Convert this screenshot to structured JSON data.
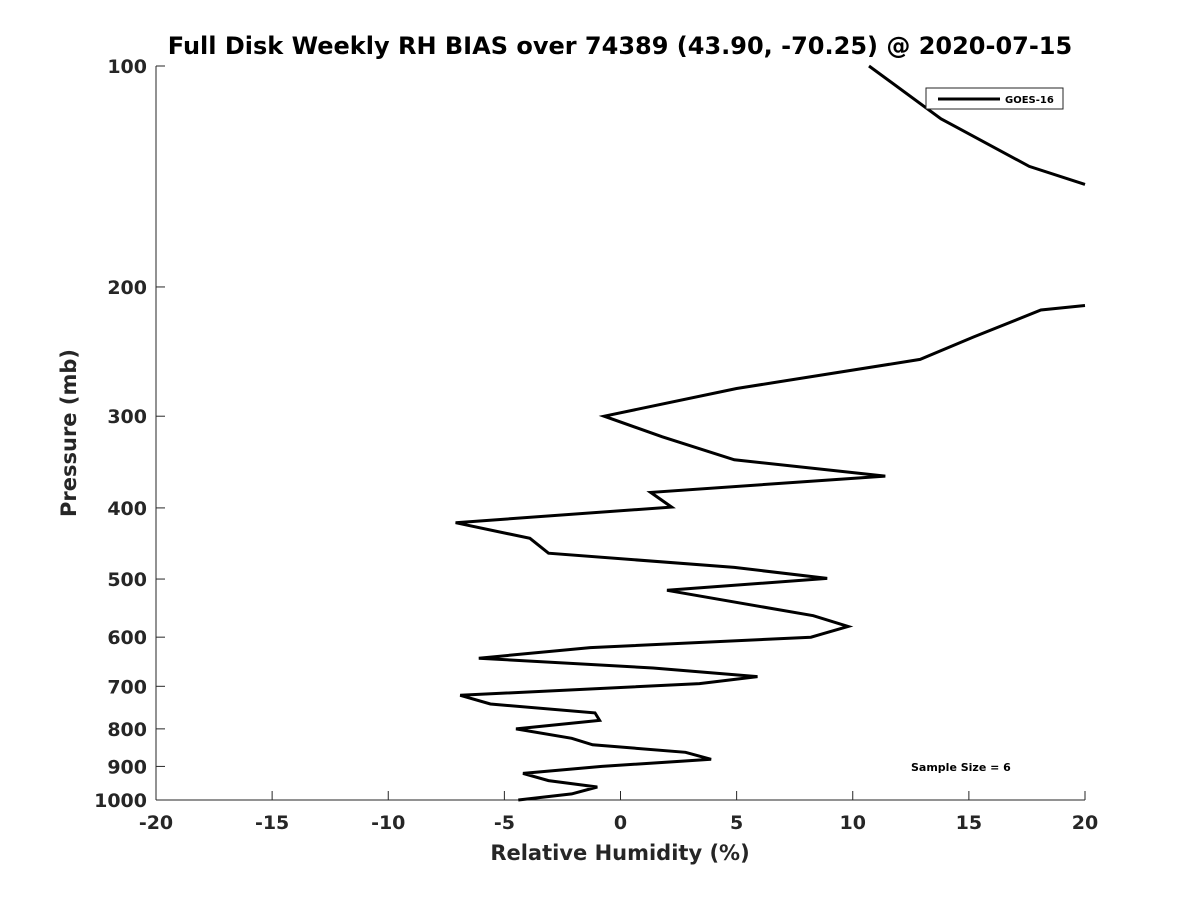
{
  "chart_data": {
    "type": "line",
    "title": "Full Disk Weekly RH BIAS over 74389 (43.90, -70.25) @ 2020-07-15",
    "xlabel": "Relative Humidity (%)",
    "ylabel": "Pressure (mb)",
    "xlim": [
      -20,
      20
    ],
    "ylim": [
      100,
      1000
    ],
    "y_scale": "log",
    "y_reversed": true,
    "x_ticks": [
      -20,
      -15,
      -10,
      -5,
      0,
      5,
      10,
      15,
      20
    ],
    "x_tick_labels": [
      "-20",
      "-15",
      "-10",
      "-5",
      "0",
      "5",
      "10",
      "15",
      "20"
    ],
    "y_ticks": [
      100,
      200,
      300,
      400,
      500,
      600,
      700,
      800,
      900,
      1000
    ],
    "y_tick_labels": [
      "100",
      "200",
      "300",
      "400",
      "500",
      "600",
      "700",
      "800",
      "900",
      "1000"
    ],
    "grid": false,
    "legend_position": "top-right",
    "annotation": "Sample Size = 6",
    "series": [
      {
        "name": "GOES-16",
        "color": "#000000",
        "segments": [
          [
            {
              "x": 10.7,
              "y": 100
            },
            {
              "x": 13.8,
              "y": 118
            },
            {
              "x": 17.6,
              "y": 137
            },
            {
              "x": 20.0,
              "y": 145
            }
          ],
          [
            {
              "x": 20.0,
              "y": 212
            },
            {
              "x": 18.1,
              "y": 215
            },
            {
              "x": 15.2,
              "y": 234
            },
            {
              "x": 12.9,
              "y": 251
            },
            {
              "x": 5.0,
              "y": 275
            },
            {
              "x": -0.7,
              "y": 300
            },
            {
              "x": 1.8,
              "y": 320
            },
            {
              "x": 4.9,
              "y": 344
            },
            {
              "x": 11.4,
              "y": 362
            },
            {
              "x": 1.3,
              "y": 381
            },
            {
              "x": 2.2,
              "y": 399
            },
            {
              "x": -7.1,
              "y": 419
            },
            {
              "x": -3.9,
              "y": 440
            },
            {
              "x": -3.1,
              "y": 461
            },
            {
              "x": 4.9,
              "y": 482
            },
            {
              "x": 8.9,
              "y": 499
            },
            {
              "x": 2.0,
              "y": 518
            },
            {
              "x": 8.3,
              "y": 561
            },
            {
              "x": 9.8,
              "y": 580
            },
            {
              "x": 8.2,
              "y": 600
            },
            {
              "x": -1.3,
              "y": 620
            },
            {
              "x": -6.1,
              "y": 641
            },
            {
              "x": 1.4,
              "y": 661
            },
            {
              "x": 5.9,
              "y": 679
            },
            {
              "x": 3.4,
              "y": 694
            },
            {
              "x": -6.9,
              "y": 720
            },
            {
              "x": -5.6,
              "y": 740
            },
            {
              "x": -1.1,
              "y": 761
            },
            {
              "x": -0.9,
              "y": 779
            },
            {
              "x": -4.5,
              "y": 800
            },
            {
              "x": -2.1,
              "y": 824
            },
            {
              "x": -1.2,
              "y": 841
            },
            {
              "x": 2.8,
              "y": 861
            },
            {
              "x": 3.9,
              "y": 880
            },
            {
              "x": -0.8,
              "y": 900
            },
            {
              "x": -4.2,
              "y": 920
            },
            {
              "x": -3.1,
              "y": 941
            },
            {
              "x": -1.0,
              "y": 960
            },
            {
              "x": -2.1,
              "y": 981
            },
            {
              "x": -4.4,
              "y": 1000
            }
          ]
        ]
      }
    ]
  }
}
